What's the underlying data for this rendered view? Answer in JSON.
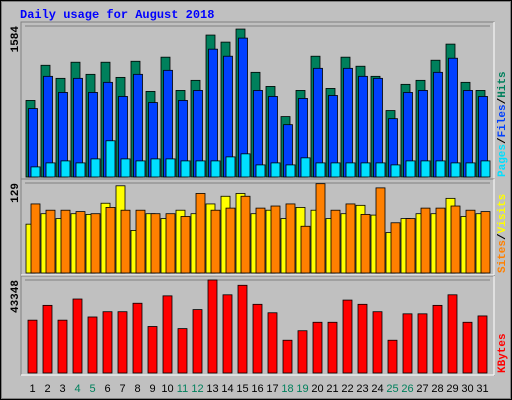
{
  "title": "Daily usage for August 2018",
  "legend_separator": "/",
  "chart_data": [
    {
      "type": "bar",
      "ylim": [
        0,
        1584
      ],
      "yticks": [
        1584
      ],
      "series": [
        {
          "name": "Hits",
          "color": "#00805c",
          "values": [
            803,
            1172,
            1035,
            1204,
            1077,
            1204,
            1045,
            1214,
            898,
            1257,
            908,
            1014,
            1489,
            1415,
            1552,
            1098,
            950,
            634,
            908,
            1267,
            929,
            1257,
            1162,
            1056,
            697,
            972,
            1014,
            1225,
            1394,
            993,
            908
          ]
        },
        {
          "name": "Files",
          "color": "#0040ff",
          "values": [
            718,
            1056,
            887,
            1035,
            887,
            993,
            845,
            1077,
            781,
            1119,
            803,
            908,
            1341,
            1267,
            1457,
            908,
            845,
            549,
            824,
            1140,
            855,
            1140,
            1056,
            1035,
            612,
            887,
            908,
            1098,
            1246,
            908,
            845
          ]
        },
        {
          "name": "Pages",
          "color": "#00e0ff",
          "values": [
            106,
            148,
            169,
            148,
            190,
            380,
            190,
            169,
            190,
            190,
            169,
            169,
            169,
            211,
            243,
            127,
            148,
            127,
            201,
            148,
            148,
            148,
            148,
            148,
            127,
            169,
            169,
            169,
            148,
            148,
            169
          ]
        }
      ]
    },
    {
      "type": "bar",
      "ylim": [
        0,
        129
      ],
      "yticks": [
        129
      ],
      "series": [
        {
          "name": "Visits",
          "color": "#ffff00",
          "values": [
            70,
            85,
            78,
            85,
            84,
            100,
            125,
            61,
            85,
            78,
            90,
            85,
            99,
            110,
            114,
            85,
            90,
            78,
            94,
            90,
            78,
            85,
            97,
            83,
            58,
            78,
            85,
            85,
            107,
            81,
            85
          ]
        },
        {
          "name": "Sites",
          "color": "#ff8000",
          "values": [
            99,
            90,
            90,
            88,
            85,
            94,
            90,
            90,
            85,
            85,
            81,
            114,
            90,
            93,
            110,
            93,
            96,
            99,
            67,
            128,
            90,
            99,
            84,
            122,
            72,
            78,
            93,
            93,
            96,
            90,
            88
          ]
        }
      ]
    },
    {
      "type": "bar",
      "ylim": [
        0,
        43348
      ],
      "yticks": [
        43348
      ],
      "categories": [
        "1",
        "2",
        "3",
        "4",
        "5",
        "6",
        "7",
        "8",
        "9",
        "10",
        "11",
        "12",
        "13",
        "14",
        "15",
        "16",
        "17",
        "18",
        "19",
        "20",
        "21",
        "22",
        "23",
        "24",
        "25",
        "26",
        "27",
        "28",
        "29",
        "30",
        "31"
      ],
      "category_colors": [
        "#000000",
        "#000000",
        "#000000",
        "#00805c",
        "#00805c",
        "#000000",
        "#000000",
        "#000000",
        "#000000",
        "#000000",
        "#00805c",
        "#00805c",
        "#000000",
        "#000000",
        "#000000",
        "#000000",
        "#000000",
        "#00805c",
        "#00805c",
        "#000000",
        "#000000",
        "#000000",
        "#000000",
        "#000000",
        "#00805c",
        "#00805c",
        "#000000",
        "#000000",
        "#000000",
        "#000000",
        "#000000"
      ],
      "series": [
        {
          "name": "KBytes",
          "color": "#ff0000",
          "values": [
            24630,
            31526,
            24630,
            34482,
            26108,
            28571,
            28571,
            32512,
            21674,
            35960,
            20689,
            29556,
            43348,
            36452,
            40886,
            32019,
            28078,
            15271,
            19704,
            23645,
            23645,
            33989,
            32019,
            28571,
            15271,
            27586,
            27586,
            31526,
            36452,
            23645,
            26600
          ]
        }
      ]
    }
  ]
}
